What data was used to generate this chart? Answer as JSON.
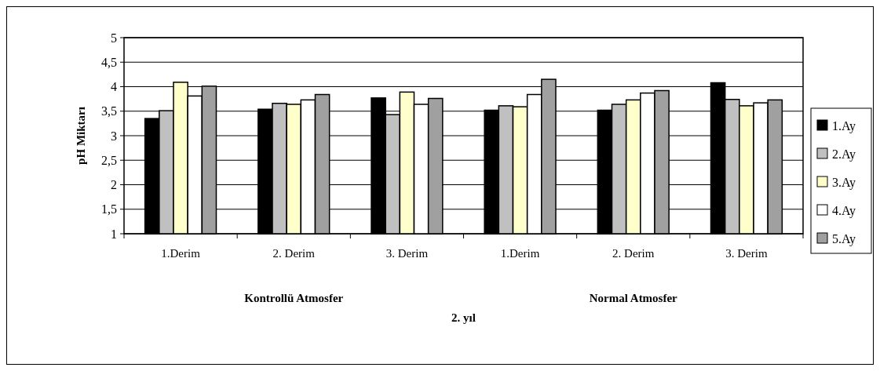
{
  "chart_data": {
    "type": "bar",
    "xlabel": "2. yıl",
    "ylabel": "pH Miktarı",
    "categories": [
      "1.Derim",
      "2. Derim",
      "3. Derim",
      "1.Derim",
      "2. Derim",
      "3. Derim"
    ],
    "annotations": [
      "Kontrollü Atmosfer",
      "Normal Atmosfer"
    ],
    "series": [
      {
        "name": "1.Ay",
        "color": "#000000",
        "values": [
          3.35,
          3.54,
          3.77,
          3.52,
          3.52,
          4.08
        ]
      },
      {
        "name": "2.Ay",
        "color": "#c0c0c0",
        "values": [
          3.51,
          3.66,
          3.43,
          3.61,
          3.64,
          3.74
        ]
      },
      {
        "name": "3.Ay",
        "color": "#ffffcc",
        "values": [
          4.09,
          3.64,
          3.89,
          3.59,
          3.73,
          3.61
        ]
      },
      {
        "name": "4.Ay",
        "color": "#ffffff",
        "values": [
          3.81,
          3.73,
          3.64,
          3.84,
          3.87,
          3.67
        ]
      },
      {
        "name": "5.Ay",
        "color": "#a0a0a0",
        "values": [
          4.01,
          3.84,
          3.76,
          4.15,
          3.92,
          3.73
        ]
      }
    ],
    "ylim": [
      1,
      5
    ],
    "yticks": [
      {
        "value": 1,
        "label": "1"
      },
      {
        "value": 1.5,
        "label": "1,5"
      },
      {
        "value": 2,
        "label": "2"
      },
      {
        "value": 2.5,
        "label": "2,5"
      },
      {
        "value": 3,
        "label": "3"
      },
      {
        "value": 3.5,
        "label": "3,5"
      },
      {
        "value": 4,
        "label": "4"
      },
      {
        "value": 4.5,
        "label": "4,5"
      },
      {
        "value": 5,
        "label": "5"
      }
    ],
    "grid": "y",
    "legend": "right"
  }
}
